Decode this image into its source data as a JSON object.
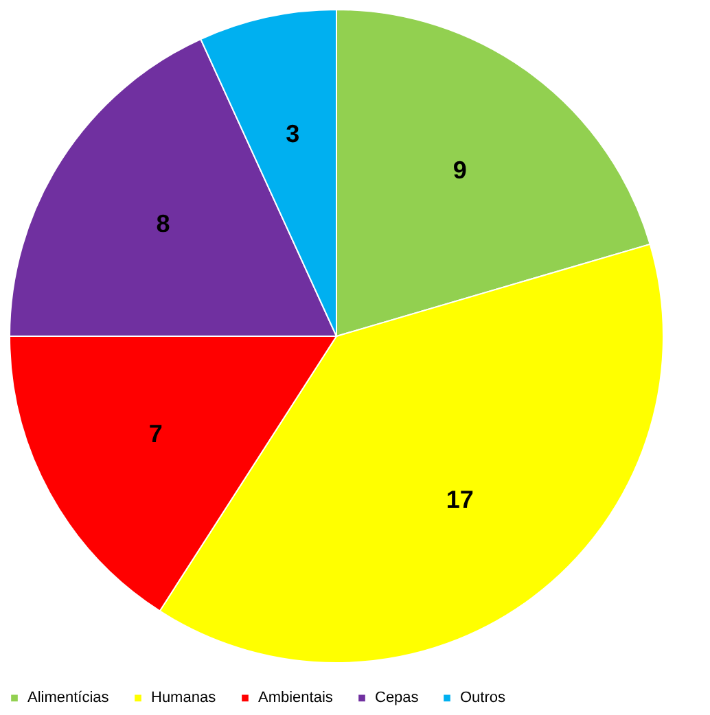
{
  "chart_data": {
    "type": "pie",
    "categories": [
      "Alimentícias",
      "Humanas",
      "Ambientais",
      "Cepas",
      "Outros"
    ],
    "values": [
      9,
      17,
      7,
      8,
      3
    ],
    "colors": [
      "#92d050",
      "#ffff00",
      "#ff0000",
      "#7030a0",
      "#00b0f0"
    ],
    "data_labels": true,
    "legend": "bottom"
  }
}
